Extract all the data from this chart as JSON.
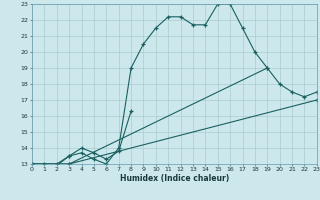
{
  "xlabel": "Humidex (Indice chaleur)",
  "background_color": "#cce8ec",
  "grid_color": "#aacccc",
  "line_color": "#1a6060",
  "xlim": [
    0,
    23
  ],
  "ylim": [
    13,
    23
  ],
  "xticks": [
    0,
    1,
    2,
    3,
    4,
    5,
    6,
    7,
    8,
    9,
    10,
    11,
    12,
    13,
    14,
    15,
    16,
    17,
    18,
    19,
    20,
    21,
    22,
    23
  ],
  "yticks": [
    13,
    14,
    15,
    16,
    17,
    18,
    19,
    20,
    21,
    22,
    23
  ],
  "lines": [
    {
      "x": [
        0,
        1,
        2,
        3,
        4,
        5,
        6,
        7,
        8,
        9,
        10,
        11,
        12,
        13,
        14,
        15,
        16,
        17,
        18,
        19
      ],
      "y": [
        13,
        13,
        13,
        13.5,
        13.7,
        13.3,
        13.0,
        14.0,
        19.0,
        20.5,
        21.5,
        22.2,
        22.2,
        21.7,
        21.7,
        23.0,
        23.0,
        21.5,
        20.0,
        19.0
      ]
    },
    {
      "x": [
        0,
        2,
        3,
        4,
        5,
        6,
        7,
        8
      ],
      "y": [
        13,
        12.9,
        13.5,
        14.0,
        13.7,
        13.3,
        13.8,
        16.3
      ]
    },
    {
      "x": [
        0,
        3,
        23
      ],
      "y": [
        13,
        13,
        17.0
      ]
    },
    {
      "x": [
        0,
        3,
        19,
        20,
        21,
        22,
        23
      ],
      "y": [
        13,
        13,
        19.0,
        18.0,
        17.5,
        17.2,
        17.5
      ]
    }
  ]
}
